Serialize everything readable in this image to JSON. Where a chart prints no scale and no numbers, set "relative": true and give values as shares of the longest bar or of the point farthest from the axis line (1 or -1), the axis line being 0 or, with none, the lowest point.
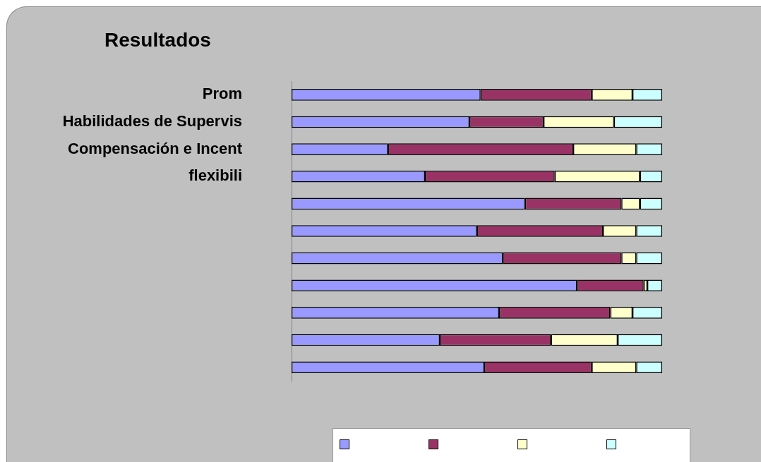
{
  "chart_data": {
    "type": "bar",
    "orientation": "horizontal",
    "stacked": true,
    "relative": true,
    "title": "Resultados",
    "categories": [
      "Prom",
      "Habilidades de Supervis",
      "Compensación e Incent",
      "flexibili",
      null,
      null,
      null,
      null,
      null,
      null,
      null
    ],
    "series": [
      {
        "color": "#9999ff",
        "values": [
          0.51,
          0.48,
          0.26,
          0.36,
          0.63,
          0.5,
          0.57,
          0.77,
          0.56,
          0.4,
          0.52
        ]
      },
      {
        "color": "#993366",
        "values": [
          0.3,
          0.2,
          0.5,
          0.35,
          0.26,
          0.34,
          0.32,
          0.18,
          0.3,
          0.3,
          0.29
        ]
      },
      {
        "color": "#ffffcc",
        "values": [
          0.11,
          0.19,
          0.17,
          0.23,
          0.05,
          0.09,
          0.04,
          0.01,
          0.06,
          0.18,
          0.12
        ]
      },
      {
        "color": "#ccffff",
        "values": [
          0.08,
          0.13,
          0.07,
          0.06,
          0.06,
          0.07,
          0.07,
          0.04,
          0.08,
          0.12,
          0.07
        ]
      }
    ]
  }
}
